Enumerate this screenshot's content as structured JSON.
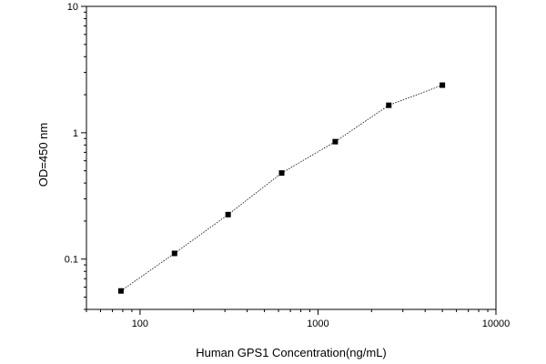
{
  "chart_data": {
    "type": "scatter",
    "x_scale": "log",
    "y_scale": "log",
    "xlabel": "Human GPS1 Concentration(ng/mL)",
    "ylabel": "OD=450 nm",
    "xlim": [
      50,
      10000
    ],
    "ylim": [
      0.04,
      10
    ],
    "x_ticks": [
      {
        "value": 100,
        "label": "100"
      },
      {
        "value": 1000,
        "label": "1000"
      },
      {
        "value": 10000,
        "label": "10000"
      }
    ],
    "y_ticks": [
      {
        "value": 0.1,
        "label": "0.1"
      },
      {
        "value": 1,
        "label": "1"
      },
      {
        "value": 10,
        "label": "10"
      }
    ],
    "grid": false,
    "legend": "none",
    "series": [
      {
        "x": [
          78.13,
          156.25,
          312.5,
          625,
          1250,
          2500,
          5000
        ],
        "y": [
          0.056,
          0.111,
          0.225,
          0.48,
          0.85,
          1.65,
          2.38
        ],
        "marker": "square",
        "line": "dotted",
        "color": "#000000"
      }
    ]
  }
}
